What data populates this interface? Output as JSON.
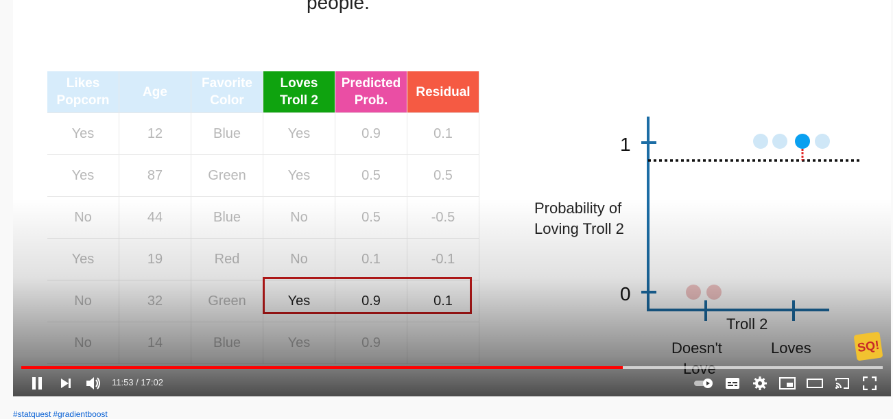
{
  "slide": {
    "top_left_text": "people.",
    "top_right_text": "—— (——) ——",
    "table": {
      "headers": [
        {
          "line1": "Likes",
          "line2": "Popcorn"
        },
        {
          "line1": "Age",
          "line2": ""
        },
        {
          "line1": "Favorite",
          "line2": "Color"
        },
        {
          "line1": "Loves",
          "line2": "Troll 2"
        },
        {
          "line1": "Predicted",
          "line2": "Prob."
        },
        {
          "line1": "Residual",
          "line2": ""
        }
      ],
      "rows": [
        [
          "Yes",
          "12",
          "Blue",
          "Yes",
          "0.9",
          "0.1"
        ],
        [
          "Yes",
          "87",
          "Green",
          "Yes",
          "0.5",
          "0.5"
        ],
        [
          "No",
          "44",
          "Blue",
          "No",
          "0.5",
          "-0.5"
        ],
        [
          "Yes",
          "19",
          "Red",
          "No",
          "0.1",
          "-0.1"
        ],
        [
          "No",
          "32",
          "Green",
          "Yes",
          "0.9",
          "0.1"
        ],
        [
          "No",
          "14",
          "Blue",
          "Yes",
          "0.9",
          ""
        ]
      ],
      "highlighted_row": 4
    },
    "plot": {
      "y_tick_1": "1",
      "y_tick_0": "0",
      "y_axis_label_line1": "Probability of",
      "y_axis_label_line2": "Loving Troll 2",
      "x_axis_label": "Troll 2",
      "x_cat_1_line1": "Doesn't",
      "x_cat_1_line2": "Love",
      "x_cat_2": "Loves"
    },
    "badge_text": "SQ!"
  },
  "player": {
    "current_time": "11:53",
    "duration": "17:02",
    "time_separator": " / ",
    "time_text": "11:53 / 17:02",
    "progress_played": 0.698,
    "progress_loaded": 1.0
  },
  "hashtags": [
    "#statquest",
    "#gradientboost"
  ],
  "colors": {
    "progress": "#ff0000",
    "header_green": "#0fa30f",
    "header_pink": "#ea4ea4",
    "header_red": "#f55a43",
    "header_faded": "#d7ecfb",
    "highlight_box": "#c41a1a",
    "axis": "#1c6da5",
    "dot_blue": "#0aa0f0",
    "dot_blue_faded": "#cfe7f7",
    "dot_red_faded": "#f0c4c4"
  }
}
